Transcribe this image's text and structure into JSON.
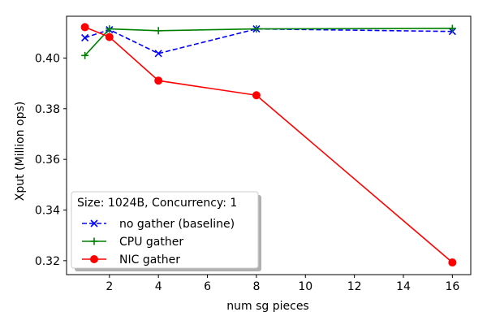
{
  "chart_data": {
    "type": "line",
    "title": "",
    "xlabel": "num sg pieces",
    "ylabel": "Xput (Million ops)",
    "xlim": [
      0.25,
      16.75
    ],
    "ylim": [
      0.3145,
      0.4165
    ],
    "x_ticks": [
      2,
      4,
      6,
      8,
      10,
      12,
      14,
      16
    ],
    "y_ticks": [
      0.32,
      0.34,
      0.36,
      0.38,
      0.4
    ],
    "legend": {
      "title": "Size: 1024B, Concurrency: 1",
      "placement": "lower-left"
    },
    "grid": false,
    "x": [
      1,
      2,
      4,
      8,
      16
    ],
    "series": [
      {
        "name": "no gather (baseline)",
        "values": [
          0.408,
          0.4112,
          0.4018,
          0.4115,
          0.4105
        ],
        "color": "#0000ff",
        "linestyle": "dashed",
        "marker": "x"
      },
      {
        "name": "CPU gather",
        "values": [
          0.401,
          0.4115,
          0.4108,
          0.4115,
          0.4117
        ],
        "color": "#008000",
        "linestyle": "solid",
        "marker": "plus"
      },
      {
        "name": "NIC gather",
        "values": [
          0.4122,
          0.4083,
          0.3911,
          0.3853,
          0.3193
        ],
        "color": "#ff0000",
        "linestyle": "solid",
        "marker": "circle"
      }
    ]
  }
}
